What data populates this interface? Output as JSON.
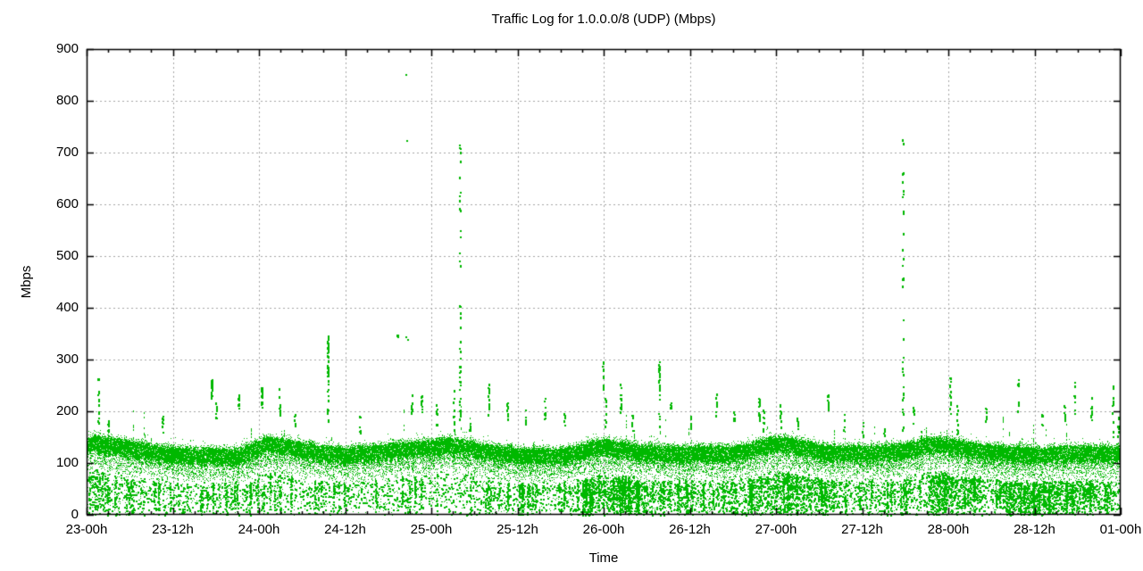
{
  "chart_data": {
    "type": "scatter",
    "title": "Traffic Log for 1.0.0.0/8 (UDP) (Mbps)",
    "xlabel": "Time",
    "ylabel": "Mbps",
    "ylim": [
      0,
      900
    ],
    "ytick_labels": [
      "0",
      "100",
      "200",
      "300",
      "400",
      "500",
      "600",
      "700",
      "800",
      "900"
    ],
    "x_span_hours": 144,
    "x_minor_tick_hours": 3,
    "xticks": [
      {
        "hour": 0,
        "label": "23-00h"
      },
      {
        "hour": 12,
        "label": "23-12h"
      },
      {
        "hour": 24,
        "label": "24-00h"
      },
      {
        "hour": 36,
        "label": "24-12h"
      },
      {
        "hour": 48,
        "label": "25-00h"
      },
      {
        "hour": 60,
        "label": "25-12h"
      },
      {
        "hour": 72,
        "label": "26-00h"
      },
      {
        "hour": 84,
        "label": "26-12h"
      },
      {
        "hour": 96,
        "label": "27-00h"
      },
      {
        "hour": 108,
        "label": "27-12h"
      },
      {
        "hour": 120,
        "label": "28-00h"
      },
      {
        "hour": 132,
        "label": "28-12h"
      },
      {
        "hour": 144,
        "label": "01-00h"
      }
    ],
    "grid": "dashed",
    "legend": "none",
    "colors": {
      "points": "#00b800",
      "grid": "#a6a6a6",
      "border": "#000000",
      "background": "#ffffff",
      "text": "#000000"
    },
    "band_profile": {
      "hours": [
        0,
        1,
        3,
        6,
        9,
        12,
        15,
        18,
        21,
        23,
        25,
        27,
        30,
        33,
        36,
        39,
        42,
        45,
        48,
        50,
        52,
        56,
        59,
        62,
        65,
        68,
        70,
        72,
        74,
        77,
        80,
        83,
        86,
        89,
        92,
        95,
        97,
        99,
        102,
        105,
        108,
        111,
        114,
        117,
        119,
        121,
        124,
        127,
        130,
        133,
        136,
        139,
        142,
        144
      ],
      "top_mbps": [
        148,
        152,
        150,
        143,
        136,
        131,
        128,
        130,
        127,
        138,
        151,
        148,
        140,
        133,
        131,
        133,
        138,
        140,
        145,
        149,
        146,
        135,
        131,
        128,
        128,
        132,
        142,
        146,
        142,
        136,
        133,
        132,
        133,
        133,
        137,
        149,
        152,
        146,
        137,
        133,
        133,
        135,
        139,
        147,
        150,
        146,
        138,
        133,
        132,
        130,
        133,
        134,
        132,
        134
      ],
      "core_thickness_mbps": 30,
      "tail_mbps": 38
    },
    "dense_undershoot_hours": [
      [
        0,
        3
      ],
      [
        69,
        78
      ],
      [
        92,
        104
      ],
      [
        117,
        124
      ],
      [
        128,
        141
      ]
    ],
    "spikes": [
      [
        1.6,
        170,
        268,
        14
      ],
      [
        3.0,
        150,
        185,
        8
      ],
      [
        10.6,
        158,
        196,
        8
      ],
      [
        17.4,
        226,
        262,
        26
      ],
      [
        18.0,
        170,
        225,
        8
      ],
      [
        21.2,
        188,
        247,
        12
      ],
      [
        24.4,
        206,
        247,
        22
      ],
      [
        26.8,
        190,
        247,
        13
      ],
      [
        29.0,
        165,
        200,
        7
      ],
      [
        33.6,
        250,
        348,
        34
      ],
      [
        33.6,
        175,
        250,
        10
      ],
      [
        38.0,
        160,
        195,
        6
      ],
      [
        43.3,
        338,
        350,
        3
      ],
      [
        45.3,
        196,
        238,
        10
      ],
      [
        46.6,
        200,
        232,
        9
      ],
      [
        48.8,
        160,
        215,
        8
      ],
      [
        51.1,
        163,
        243,
        10
      ],
      [
        52.0,
        300,
        742,
        26
      ],
      [
        52.0,
        165,
        300,
        18
      ],
      [
        53.3,
        155,
        185,
        6
      ],
      [
        55.9,
        188,
        257,
        14
      ],
      [
        58.6,
        184,
        232,
        10
      ],
      [
        61.0,
        175,
        206,
        7
      ],
      [
        63.8,
        180,
        228,
        9
      ],
      [
        66.5,
        168,
        200,
        6
      ],
      [
        71.9,
        238,
        306,
        12
      ],
      [
        72.3,
        170,
        240,
        10
      ],
      [
        74.4,
        198,
        257,
        15
      ],
      [
        76.0,
        160,
        195,
        6
      ],
      [
        79.7,
        246,
        302,
        22
      ],
      [
        79.7,
        170,
        246,
        8
      ],
      [
        81.3,
        196,
        218,
        7
      ],
      [
        84.0,
        168,
        200,
        5
      ],
      [
        87.7,
        192,
        238,
        12
      ],
      [
        90.1,
        178,
        212,
        7
      ],
      [
        93.6,
        183,
        231,
        18
      ],
      [
        94.3,
        160,
        205,
        8
      ],
      [
        96.6,
        168,
        215,
        9
      ],
      [
        99.0,
        155,
        190,
        6
      ],
      [
        103.2,
        198,
        241,
        12
      ],
      [
        105.5,
        160,
        195,
        6
      ],
      [
        108.0,
        150,
        185,
        5
      ],
      [
        111.0,
        148,
        168,
        8
      ],
      [
        113.6,
        310,
        731,
        22
      ],
      [
        113.6,
        165,
        310,
        16
      ],
      [
        115.1,
        178,
        222,
        7
      ],
      [
        120.2,
        195,
        266,
        13
      ],
      [
        121.3,
        155,
        216,
        10
      ],
      [
        125.2,
        182,
        208,
        7
      ],
      [
        129.7,
        200,
        263,
        10
      ],
      [
        133.0,
        172,
        200,
        5
      ],
      [
        136.2,
        182,
        212,
        7
      ],
      [
        137.5,
        190,
        258,
        8
      ],
      [
        139.9,
        184,
        227,
        10
      ],
      [
        142.9,
        150,
        268,
        14
      ],
      [
        143.6,
        150,
        207,
        8
      ]
    ],
    "outliers": [
      [
        44.4,
        852
      ],
      [
        44.5,
        725
      ],
      [
        44.4,
        345
      ],
      [
        44.6,
        340
      ]
    ],
    "seed": 7
  }
}
